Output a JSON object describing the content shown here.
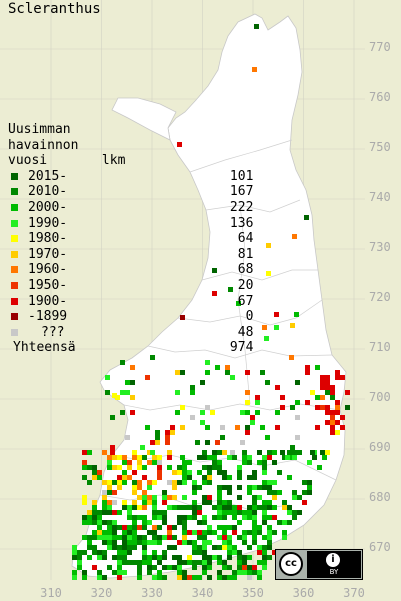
{
  "title": "Scleranthus",
  "legend": {
    "heading": "Uusimman\nhavainnon\nvuosi       lkm",
    "rows": [
      {
        "label": "2015-",
        "count": "101",
        "color": "#006400"
      },
      {
        "label": "2010-",
        "count": "167",
        "color": "#008800"
      },
      {
        "label": "2000-",
        "count": "222",
        "color": "#00bb00"
      },
      {
        "label": "1990-",
        "count": "136",
        "color": "#22ee22"
      },
      {
        "label": "1980-",
        "count": "64",
        "color": "#ffff00"
      },
      {
        "label": "1970-",
        "count": "81",
        "color": "#ffcc00"
      },
      {
        "label": "1960-",
        "count": "68",
        "color": "#ff7700"
      },
      {
        "label": "1950-",
        "count": "20",
        "color": "#ee3300"
      },
      {
        "label": "1900-",
        "count": "67",
        "color": "#dd0000"
      },
      {
        "label": "-1899",
        "count": "0",
        "color": "#990000"
      },
      {
        "label": "???",
        "count": "48",
        "color": "#c8c8c8"
      }
    ],
    "total_label": "Yhteensä",
    "total_count": "974"
  },
  "y_ticks": [
    "770",
    "760",
    "750",
    "740",
    "730",
    "720",
    "710",
    "700",
    "690",
    "680",
    "670"
  ],
  "x_ticks": [
    "310",
    "320",
    "330",
    "340",
    "350",
    "360",
    "370"
  ],
  "colors": {
    "background": "#ecedd3",
    "land": "#ffffff",
    "grid": "#d2d2c4",
    "borders": "#c8c8c8"
  },
  "license": {
    "cc": "cc",
    "by": "BY"
  }
}
